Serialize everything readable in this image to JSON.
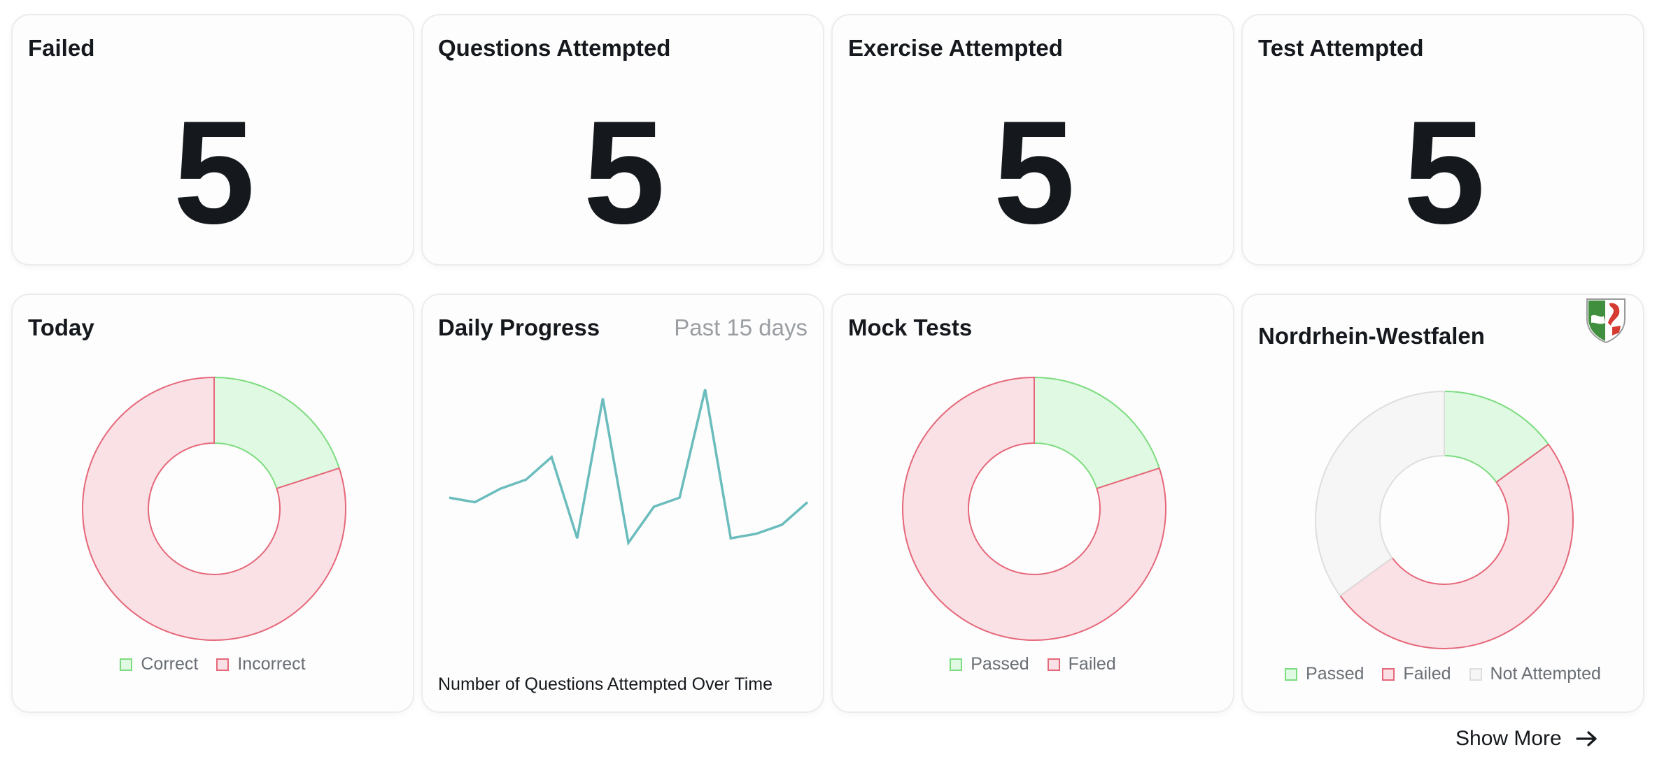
{
  "stats": [
    {
      "title": "Failed",
      "value": "5"
    },
    {
      "title": "Questions Attempted",
      "value": "5"
    },
    {
      "title": "Exercise Attempted",
      "value": "5"
    },
    {
      "title": "Test Attempted",
      "value": "5"
    }
  ],
  "colors": {
    "green_fill": "#dff9e2",
    "green_stroke": "#7ddc7f",
    "red_fill": "#fae1e6",
    "red_stroke": "#e5687a",
    "grey_fill": "#f6f6f6",
    "grey_stroke": "#dedede",
    "line": "#6bbcbd"
  },
  "today": {
    "title": "Today",
    "legend": [
      "Correct",
      "Incorrect"
    ]
  },
  "daily_progress": {
    "title": "Daily Progress",
    "range_label": "Past 15 days",
    "note": "Number of Questions Attempted Over Time"
  },
  "mock_tests": {
    "title": "Mock Tests",
    "legend": [
      "Passed",
      "Failed"
    ]
  },
  "state": {
    "title": "Nordrhein-Westfalen",
    "legend": [
      "Passed",
      "Failed",
      "Not Attempted"
    ]
  },
  "show_more_label": "Show More",
  "chart_data": [
    {
      "type": "pie",
      "title": "Today",
      "categories": [
        "Correct",
        "Incorrect"
      ],
      "values": [
        20,
        80
      ]
    },
    {
      "type": "line",
      "title": "Daily Progress",
      "x": [
        1,
        2,
        3,
        4,
        5,
        6,
        7,
        8,
        9,
        10,
        11,
        12,
        13,
        14,
        15
      ],
      "values": [
        9,
        8,
        11,
        13,
        18,
        0,
        31,
        -1,
        7,
        9,
        33,
        0,
        1,
        3,
        8
      ],
      "ylim": [
        -15,
        40
      ]
    },
    {
      "type": "pie",
      "title": "Mock Tests",
      "categories": [
        "Passed",
        "Failed"
      ],
      "values": [
        20,
        80
      ]
    },
    {
      "type": "pie",
      "title": "Nordrhein-Westfalen",
      "categories": [
        "Passed",
        "Failed",
        "Not Attempted"
      ],
      "values": [
        15,
        50,
        35
      ]
    }
  ]
}
